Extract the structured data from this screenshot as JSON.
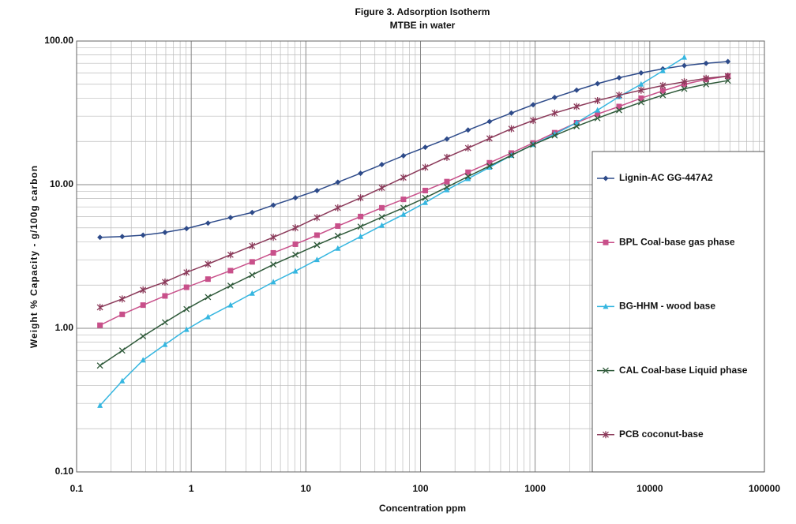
{
  "chart_data": {
    "type": "line",
    "title": "Figure 3. Adsorption Isotherm",
    "subtitle": "MTBE in water",
    "x_label": "Concentration ppm",
    "y_label": "Weight % Capacity - g/100g carbon",
    "x_log": true,
    "y_log": true,
    "grid": true,
    "minor_grid": true,
    "legend": "right",
    "xlim": [
      0.1,
      100000
    ],
    "xticks": [
      0.1,
      1,
      10,
      100,
      1000,
      10000,
      100000
    ],
    "ylim": [
      0.1,
      100
    ],
    "yticks": [
      {
        "value": 0.1,
        "label": "0.10"
      },
      {
        "value": 1,
        "label": "1.00"
      },
      {
        "value": 10,
        "label": "10.00"
      },
      {
        "value": 100,
        "label": "100.00"
      }
    ],
    "x": [
      0.16,
      0.25,
      0.38,
      0.59,
      0.91,
      1.4,
      2.2,
      3.4,
      5.2,
      8.1,
      12.5,
      19,
      30,
      46,
      71,
      110,
      170,
      260,
      400,
      620,
      960,
      1480,
      2300,
      3500,
      5400,
      8400,
      13000,
      20000,
      31000,
      48000
    ],
    "series": [
      {
        "name": "Lignin-AC GG-447A2",
        "color": "#2e4b8a",
        "marker": "diamond",
        "values": [
          4.3,
          4.35,
          4.45,
          4.65,
          4.95,
          5.4,
          5.9,
          6.4,
          7.2,
          8.1,
          9.1,
          10.4,
          12,
          13.8,
          15.9,
          18.2,
          20.8,
          24,
          27.5,
          31.5,
          36,
          40.5,
          45.5,
          50.5,
          55.5,
          60,
          64,
          67.5,
          70,
          72
        ]
      },
      {
        "name": "BPL Coal-base gas phase",
        "color": "#c8508a",
        "marker": "square",
        "values": [
          1.05,
          1.25,
          1.45,
          1.68,
          1.93,
          2.2,
          2.52,
          2.9,
          3.35,
          3.85,
          4.45,
          5.15,
          6.0,
          6.9,
          7.9,
          9.1,
          10.5,
          12.2,
          14.2,
          16.6,
          19.5,
          23,
          27,
          31,
          35,
          40,
          45,
          50,
          54,
          57
        ]
      },
      {
        "name": "BG-HHM - wood base",
        "color": "#35b6e0",
        "marker": "triangle",
        "values": [
          0.29,
          0.43,
          0.6,
          0.77,
          0.98,
          1.2,
          1.45,
          1.75,
          2.1,
          2.5,
          3.0,
          3.6,
          4.35,
          5.2,
          6.2,
          7.5,
          9.2,
          11,
          13.2,
          16,
          19,
          22.5,
          27,
          33,
          41,
          50,
          62,
          77,
          null,
          null
        ]
      },
      {
        "name": "CAL Coal-base Liquid phase",
        "color": "#2f5a3a",
        "marker": "x",
        "values": [
          0.55,
          0.7,
          0.88,
          1.1,
          1.36,
          1.65,
          1.98,
          2.35,
          2.78,
          3.25,
          3.8,
          4.4,
          5.1,
          5.95,
          6.9,
          8.1,
          9.6,
          11.4,
          13.5,
          16,
          19,
          22,
          25.5,
          29,
          33,
          37.5,
          42,
          46.5,
          50,
          53
        ]
      },
      {
        "name": "PCB coconut-base",
        "color": "#8b3a5a",
        "marker": "star",
        "values": [
          1.4,
          1.6,
          1.85,
          2.1,
          2.45,
          2.8,
          3.25,
          3.75,
          4.3,
          5.0,
          5.9,
          6.9,
          8.1,
          9.5,
          11.2,
          13.2,
          15.5,
          18,
          21,
          24.5,
          28,
          31.5,
          35,
          38.5,
          42,
          45.5,
          49,
          52,
          55,
          57
        ]
      }
    ]
  }
}
